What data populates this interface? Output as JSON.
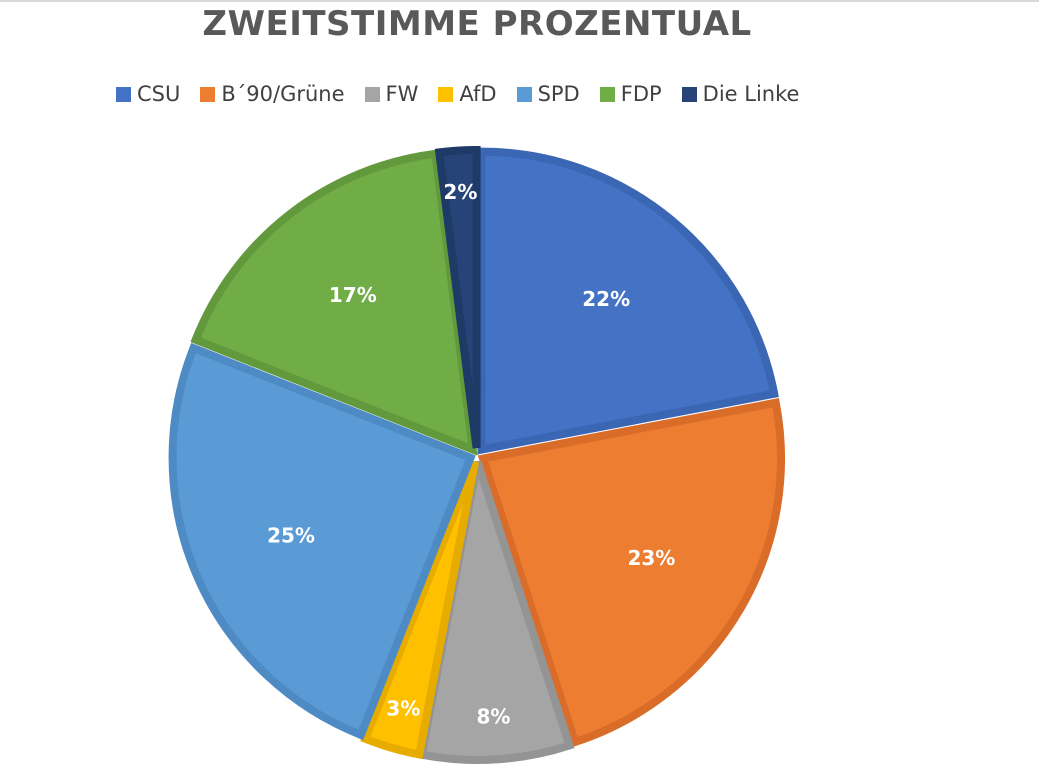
{
  "chart_data": {
    "type": "pie",
    "title": "ZWEITSTIMME PROZENTUAL",
    "legend_position": "top",
    "categories": [
      "CSU",
      "B´90/Grüne",
      "FW",
      "AfD",
      "SPD",
      "FDP",
      "Die Linke"
    ],
    "values": [
      22,
      23,
      8,
      3,
      25,
      17,
      2
    ],
    "data_labels": [
      "22%",
      "23%",
      "8%",
      "3%",
      "25%",
      "17%",
      "2%"
    ],
    "colors": [
      "#4472C4",
      "#ED7D31",
      "#A5A5A5",
      "#FFC000",
      "#5B9BD5",
      "#70AD47",
      "#264478"
    ],
    "border_colors": [
      "#3A66B3",
      "#D96C28",
      "#949494",
      "#E6AC00",
      "#4E8BC4",
      "#62993D",
      "#1E3A66"
    ]
  }
}
